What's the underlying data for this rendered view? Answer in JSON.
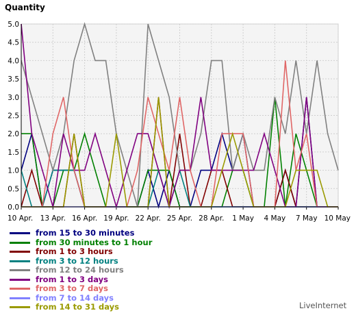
{
  "chart_data": {
    "type": "line",
    "ylabel": "Quantity",
    "ylim": [
      0,
      5
    ],
    "yticks": [
      "0.0",
      "0.5",
      "1.0",
      "1.5",
      "2.0",
      "2.5",
      "3.0",
      "3.5",
      "4.0",
      "4.5",
      "5.0"
    ],
    "xticks": [
      {
        "day": 0,
        "label": "10 Apr."
      },
      {
        "day": 3,
        "label": "13 Apr."
      },
      {
        "day": 6,
        "label": "16 Apr."
      },
      {
        "day": 9,
        "label": "19 Apr."
      },
      {
        "day": 12,
        "label": "22 Apr."
      },
      {
        "day": 15,
        "label": "25 Apr."
      },
      {
        "day": 18,
        "label": "28 Apr."
      },
      {
        "day": 21,
        "label": "1 May"
      },
      {
        "day": 24,
        "label": "4 May"
      },
      {
        "day": 27,
        "label": "7 May"
      },
      {
        "day": 30,
        "label": "10 May"
      }
    ],
    "grid": true,
    "legend_position": "bottom-left",
    "series": [
      {
        "name": "from 15 to 30 minutes",
        "color": "#000080",
        "values": [
          1,
          2,
          0,
          1,
          1,
          1,
          0,
          0,
          0,
          0,
          0,
          0,
          1,
          0,
          1,
          0,
          0,
          1,
          1,
          2,
          1,
          2,
          0,
          0,
          0,
          1,
          0,
          3,
          0,
          0,
          0
        ]
      },
      {
        "name": "from 30 minutes to 1 hour",
        "color": "#008000",
        "values": [
          2,
          2,
          0,
          0,
          1,
          1,
          2,
          1,
          0,
          0,
          0,
          0,
          1,
          1,
          1,
          0,
          0,
          0,
          0,
          0,
          1,
          1,
          0,
          0,
          3,
          0,
          2,
          1,
          0,
          0,
          0
        ]
      },
      {
        "name": "from 1 to 3 hours",
        "color": "#800000",
        "values": [
          0,
          1,
          0,
          0,
          0,
          2,
          0,
          0,
          0,
          0,
          0,
          0,
          0,
          3,
          0,
          2,
          0,
          0,
          1,
          1,
          0,
          0,
          0,
          0,
          0,
          1,
          0,
          0,
          0,
          0,
          0
        ]
      },
      {
        "name": "from 3 to 12 hours",
        "color": "#008080",
        "values": [
          1,
          0,
          0,
          1,
          1,
          1,
          0,
          0,
          0,
          0,
          0,
          0,
          0,
          1,
          0,
          1,
          0,
          0,
          0,
          0,
          0,
          0,
          0,
          0,
          0,
          0,
          0,
          0,
          0,
          0,
          0
        ]
      },
      {
        "name": "from 12 to 24 hours",
        "color": "#808080",
        "values": [
          4,
          3,
          2,
          1,
          2,
          4,
          5,
          4,
          4,
          2,
          1,
          0,
          5,
          4,
          3,
          1,
          1,
          2,
          4,
          4,
          1,
          2,
          1,
          1,
          3,
          2,
          4,
          2,
          4,
          2,
          1
        ]
      },
      {
        "name": "from 1 to 3 days",
        "color": "#800080",
        "values": [
          5,
          2,
          1,
          0,
          2,
          1,
          1,
          2,
          1,
          0,
          1,
          2,
          2,
          1,
          0,
          1,
          1,
          3,
          1,
          1,
          1,
          1,
          1,
          2,
          1,
          0,
          0,
          3,
          0,
          0,
          0
        ]
      },
      {
        "name": "from 3 to 7 days",
        "color": "#e06666",
        "values": [
          0,
          0,
          0,
          2,
          3,
          1,
          0,
          0,
          0,
          0,
          0,
          1,
          3,
          2,
          1,
          3,
          1,
          0,
          0,
          2,
          2,
          2,
          0,
          0,
          0,
          4,
          1,
          2,
          0,
          0,
          0
        ]
      },
      {
        "name": "from 7 to 14 days",
        "color": "#8080ff",
        "values": [
          0,
          0,
          0,
          0,
          0,
          0,
          0,
          0,
          0,
          0,
          0,
          0,
          0,
          0,
          0,
          0,
          0,
          0,
          0,
          0,
          0,
          0,
          0,
          0,
          0,
          0,
          0,
          0,
          0,
          0,
          0
        ]
      },
      {
        "name": "from 14 to 31 days",
        "color": "#9a9a00",
        "values": [
          0,
          0,
          0,
          0,
          0,
          2,
          0,
          0,
          0,
          2,
          0,
          0,
          0,
          3,
          0,
          0,
          0,
          0,
          0,
          1,
          2,
          1,
          0,
          0,
          0,
          0,
          1,
          1,
          1,
          0,
          0
        ]
      }
    ]
  },
  "brand": "LiveInternet"
}
